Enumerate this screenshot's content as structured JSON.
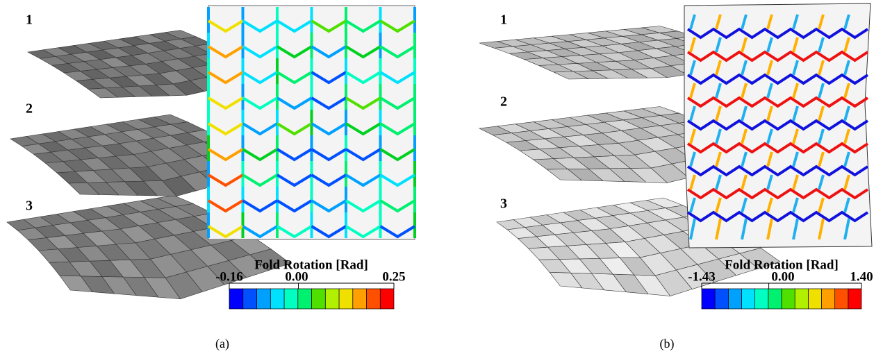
{
  "panels": [
    {
      "label": "(a)",
      "states": [
        "1",
        "2",
        "3"
      ],
      "colorbar": {
        "title": "Fold Rotation [Rad]",
        "ticks": [
          "-0.16",
          "0.00",
          "0.25"
        ]
      }
    },
    {
      "label": "(b)",
      "states": [
        "1",
        "2",
        "3"
      ],
      "colorbar": {
        "title": "Fold Rotation [Rad]",
        "ticks": [
          "-1.43",
          "0.00",
          "1.40"
        ]
      }
    }
  ]
}
